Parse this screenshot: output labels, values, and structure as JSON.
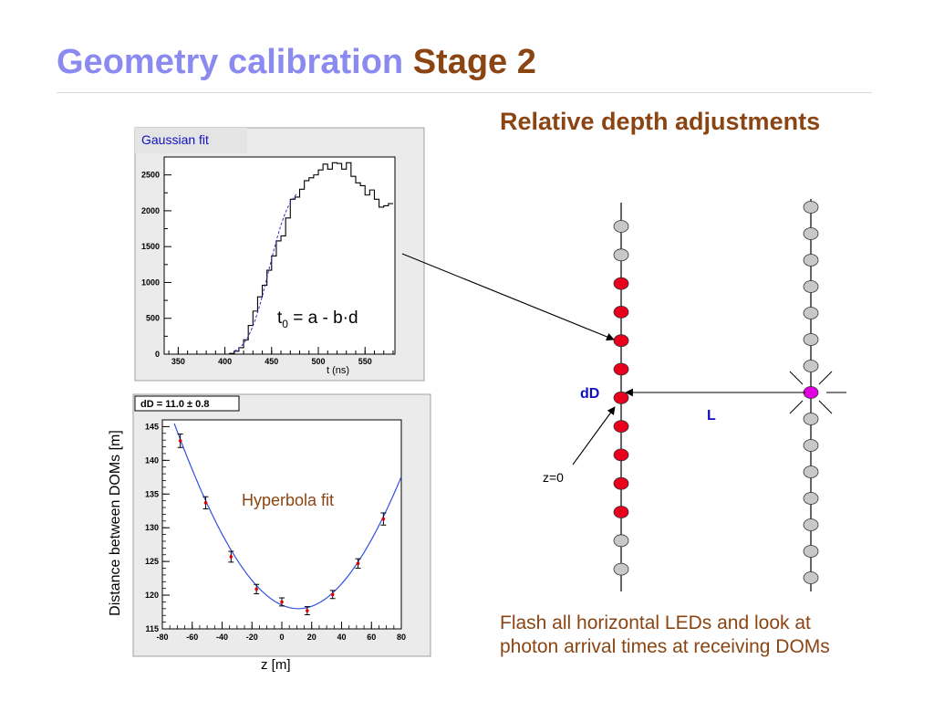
{
  "slide": {
    "title_part1": "Geometry calibration",
    "title_part2": "Stage 2",
    "subtitle": "Relative depth adjustments",
    "caption_line1": "Flash all horizontal LEDs and look at",
    "caption_line2": "photon arrival times at receiving DOMs",
    "colors": {
      "title_blue": "#8a8af0",
      "title_brown": "#8b4513",
      "dom_red": "#e8001c",
      "dom_gray": "#c8c8c8",
      "emitter": "#e000e0",
      "label_blue": "#1010c0"
    }
  },
  "chart_data": [
    {
      "type": "histogram",
      "title": "Gaussian fit",
      "xlabel": "t (ns)",
      "ylabel": "",
      "xlim": [
        335,
        582
      ],
      "ylim": [
        0,
        2750
      ],
      "xticks": [
        "350",
        "400",
        "450",
        "500",
        "550"
      ],
      "yticks": [
        "0",
        "500",
        "1000",
        "1500",
        "2000",
        "2500"
      ],
      "bin_edges": [
        385,
        390,
        395,
        400,
        405,
        410,
        415,
        420,
        425,
        430,
        435,
        440,
        445,
        450,
        455,
        460,
        465,
        470,
        475,
        480,
        485,
        490,
        495,
        500,
        505,
        510,
        515,
        520,
        525,
        530,
        535,
        540,
        545,
        550,
        555,
        560,
        565,
        570,
        575,
        580
      ],
      "counts": [
        0,
        0,
        0,
        0,
        10,
        40,
        90,
        200,
        400,
        600,
        800,
        960,
        1170,
        1370,
        1580,
        1650,
        1900,
        2160,
        2190,
        2300,
        2420,
        2460,
        2500,
        2570,
        2650,
        2580,
        2670,
        2660,
        2580,
        2670,
        2480,
        2390,
        2350,
        2220,
        2290,
        2160,
        2050,
        2070,
        2100
      ],
      "fit": {
        "type": "erf",
        "annotation": "t0 = a - b·d"
      }
    },
    {
      "type": "scatter",
      "title": "dD = 11.0 ± 0.8",
      "xlabel": "z [m]",
      "ylabel": "Distance between DOMs [m]",
      "xlim": [
        -80,
        80
      ],
      "ylim": [
        115,
        146
      ],
      "xticks": [
        "-80",
        "-60",
        "-40",
        "-20",
        "0",
        "20",
        "40",
        "60",
        "80"
      ],
      "yticks": [
        "115",
        "120",
        "125",
        "130",
        "135",
        "140",
        "145"
      ],
      "points": [
        {
          "x": -68,
          "y": 142.9,
          "err": 1.0
        },
        {
          "x": -51,
          "y": 133.7,
          "err": 0.9
        },
        {
          "x": -34,
          "y": 125.7,
          "err": 0.8
        },
        {
          "x": -17,
          "y": 120.9,
          "err": 0.7
        },
        {
          "x": 0,
          "y": 119.0,
          "err": 0.6
        },
        {
          "x": 17,
          "y": 117.7,
          "err": 0.6
        },
        {
          "x": 34,
          "y": 120.1,
          "err": 0.6
        },
        {
          "x": 51,
          "y": 124.7,
          "err": 0.7
        },
        {
          "x": 68,
          "y": 131.3,
          "err": 0.9
        }
      ],
      "fit": {
        "type": "hyperbola",
        "label": "Hyperbola fit",
        "x0": 11,
        "ymin": 118,
        "a": 0.3
      }
    }
  ],
  "diagram": {
    "label_dD": "dD",
    "label_L": "L",
    "label_z0": "z=0",
    "left_string": [
      "gray",
      "gray",
      "red",
      "red",
      "red",
      "red",
      "red",
      "red",
      "red",
      "red",
      "red",
      "gray",
      "gray"
    ],
    "right_string": [
      "gray",
      "gray",
      "gray",
      "gray",
      "gray",
      "gray",
      "gray",
      "emitter",
      "gray",
      "gray",
      "gray",
      "gray",
      "gray",
      "gray",
      "gray"
    ]
  }
}
